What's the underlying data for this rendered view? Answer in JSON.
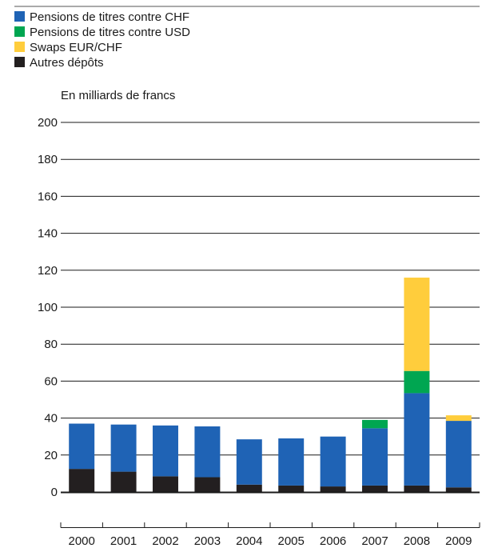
{
  "chart_data": {
    "type": "bar",
    "stacked": true,
    "unit_label": "En milliards de francs",
    "categories": [
      "2000",
      "2001",
      "2002",
      "2003",
      "2004",
      "2005",
      "2006",
      "2007",
      "2008",
      "2009"
    ],
    "series": [
      {
        "name": "Autres dépôts",
        "color": "#231f20",
        "values": [
          12.5,
          11,
          8.5,
          8,
          4,
          3.5,
          3,
          3.5,
          3.5,
          2.5
        ]
      },
      {
        "name": "Pensions de titres contre CHF",
        "color": "#1f63b5",
        "values": [
          24.5,
          25.5,
          27.5,
          27.5,
          24.5,
          25.5,
          27,
          31,
          50,
          36
        ]
      },
      {
        "name": "Pensions de titres contre USD",
        "color": "#00a651",
        "values": [
          0,
          0,
          0,
          0,
          0,
          0,
          0,
          4.5,
          12,
          0
        ]
      },
      {
        "name": "Swaps EUR/CHF",
        "color": "#ffcd3c",
        "values": [
          0,
          0,
          0,
          0,
          0,
          0,
          0,
          0,
          50.5,
          3
        ]
      }
    ],
    "legend_order": [
      "Pensions de titres contre CHF",
      "Pensions de titres contre USD",
      "Swaps EUR/CHF",
      "Autres dépôts"
    ],
    "ylim": [
      0,
      200
    ],
    "yticks": [
      0,
      20,
      40,
      60,
      80,
      100,
      120,
      140,
      160,
      180,
      200
    ],
    "grid": true,
    "legend_position": "top-left"
  }
}
